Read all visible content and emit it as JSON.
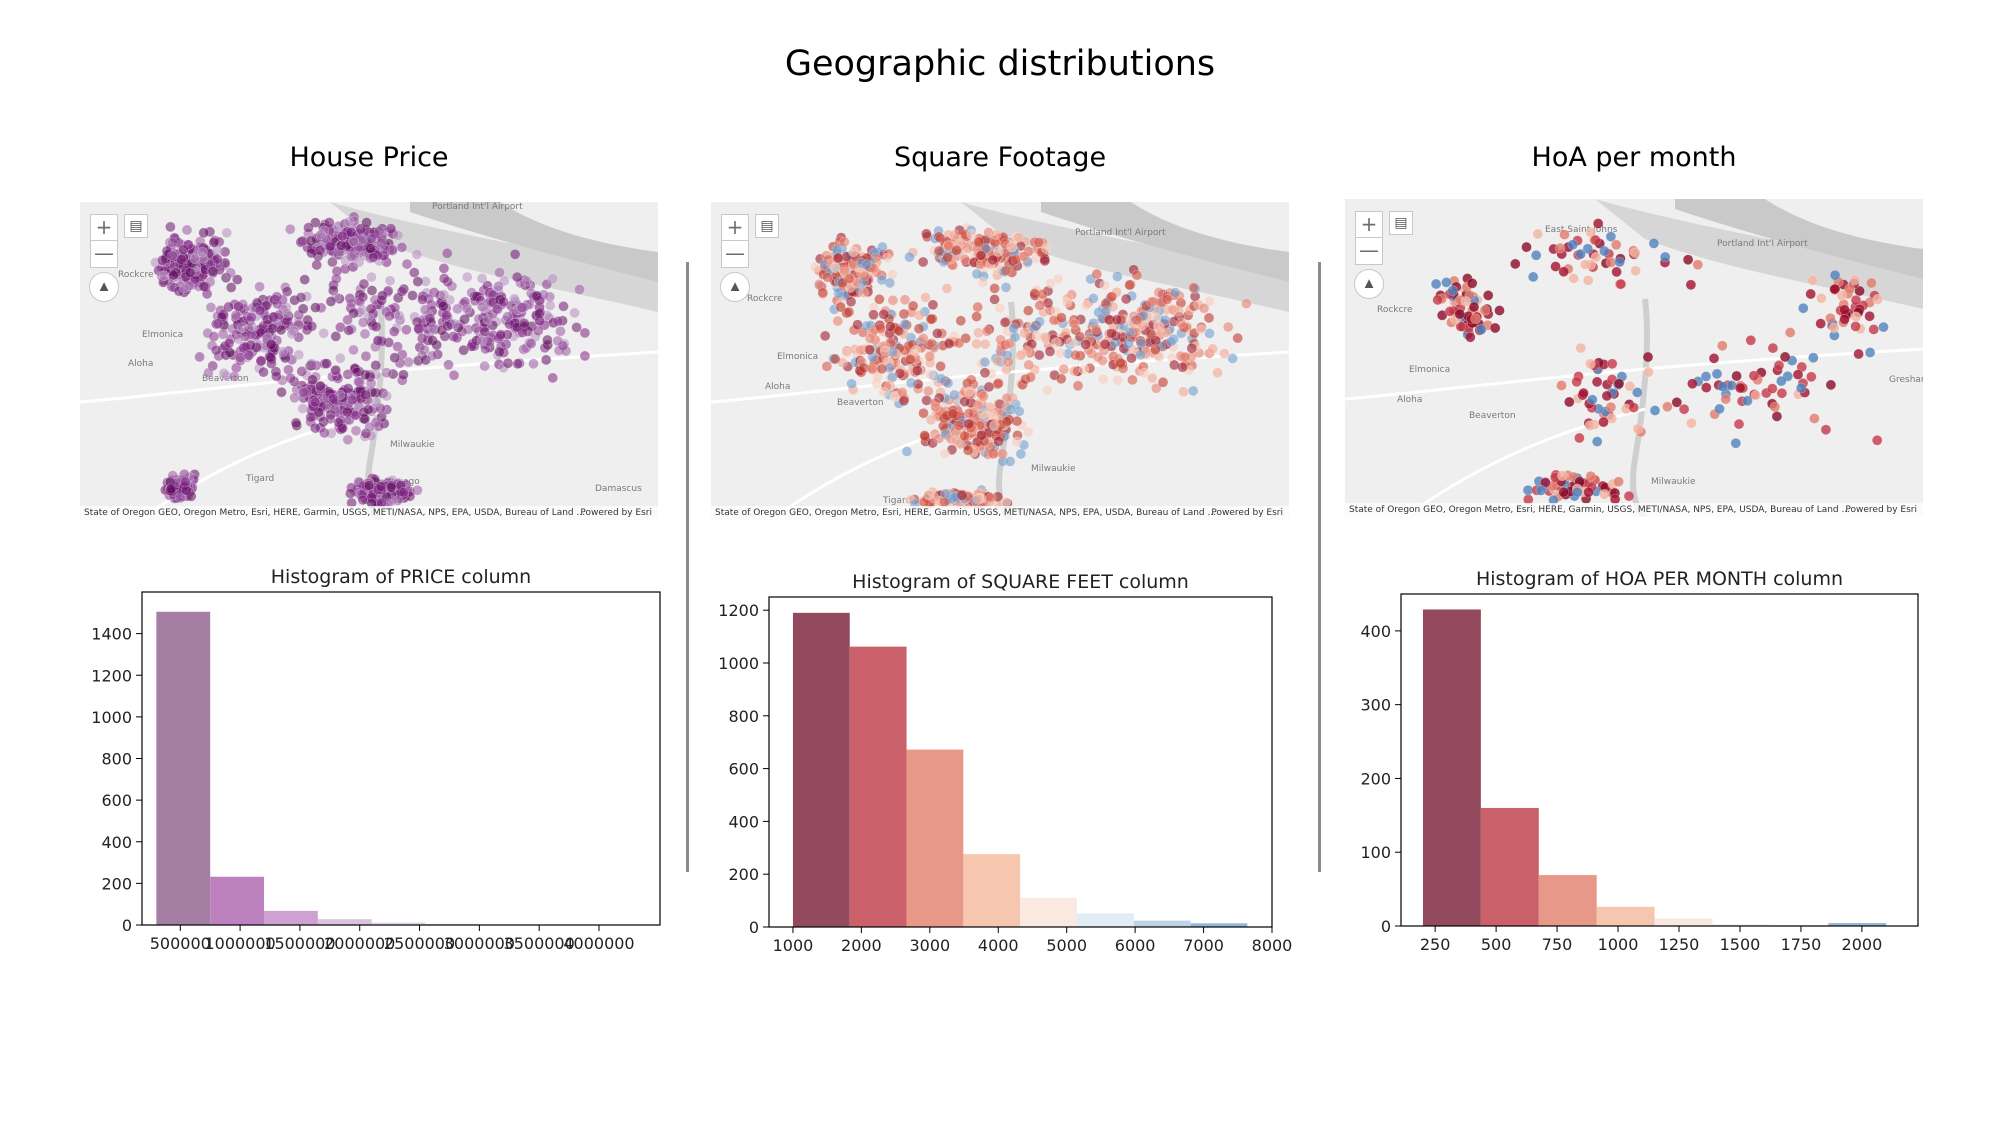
{
  "title": "Geographic distributions",
  "columns": [
    {
      "heading": "House Price",
      "map": {
        "places": [
          "Portland Int'l Airport",
          "Elmonica",
          "Aloha",
          "Beaverton",
          "Tigard",
          "Lake Oswego",
          "Milwaukie",
          "Damascus",
          "Rockcre"
        ],
        "attribution": "State of Oregon GEO, Oregon Metro, Esri, HERE, Garmin, USGS, METI/NASA, NPS, EPA, USDA, Bureau of Land ...",
        "powered": "Powered by Esri",
        "zoom_in": "+",
        "zoom_out": "—",
        "colors": [
          "#5c0a5c",
          "#6e1470",
          "#7b2080",
          "#8a3490",
          "#9a5aa4",
          "#b48cc0"
        ]
      }
    },
    {
      "heading": "Square Footage",
      "map": {
        "places": [
          "Portland Int'l Airport",
          "Elmonica",
          "Aloha",
          "Beaverton",
          "Tigard",
          "Milwaukie",
          "Rockcre"
        ],
        "attribution": "State of Oregon GEO, Oregon Metro, Esri, HERE, Garmin, USGS, METI/NASA, NPS, EPA, USDA, Bureau of Land ...",
        "powered": "Powered by Esri",
        "zoom_in": "+",
        "zoom_out": "—",
        "colors": [
          "#c0392b",
          "#d9584a",
          "#e8806f",
          "#f1a792",
          "#f7cbbb",
          "#6f9fcf",
          "#9e1c2e"
        ]
      }
    },
    {
      "heading": "HoA per month",
      "map": {
        "places": [
          "East Saint Johns",
          "Portland Int'l Airport",
          "Elmonica",
          "Aloha",
          "Beaverton",
          "Milwaukie",
          "Gresham",
          "Rockcre"
        ],
        "attribution": "State of Oregon GEO, Oregon Metro, Esri, HERE, Garmin, USGS, METI/NASA, NPS, EPA, USDA, Bureau of Land ...",
        "powered": "Powered by Esri",
        "zoom_in": "+",
        "zoom_out": "—",
        "colors": [
          "#8b0a25",
          "#a3122f",
          "#c43848",
          "#e07a6a",
          "#f3b4a0",
          "#4f82bd"
        ]
      }
    }
  ],
  "chart_data": [
    {
      "type": "bar",
      "title": "Histogram of PRICE column",
      "xlabel": "",
      "ylabel": "",
      "bin_edges": [
        300000,
        750000,
        1200000,
        1650000,
        2100000,
        2550000,
        3000000,
        3450000,
        3900000,
        4350000
      ],
      "values": [
        1505,
        232,
        68,
        28,
        12,
        6,
        3,
        1,
        1
      ],
      "xlim": [
        180000,
        4510000
      ],
      "ylim": [
        0,
        1600
      ],
      "xticks": [
        500000,
        1000000,
        1500000,
        2000000,
        2500000,
        3000000,
        3500000,
        4000000
      ],
      "xtick_labels": [
        "500000",
        "1000000",
        "1500000",
        "2000000",
        "2500000",
        "3000000",
        "3500000",
        "4000000"
      ],
      "yticks": [
        0,
        200,
        400,
        600,
        800,
        1000,
        1200,
        1400
      ],
      "colors": [
        "#a57ea4",
        "#bd82bd",
        "#cda2d3",
        "#dbc2e2",
        "#e4d6ea",
        "#ebe3f0",
        "#efeaf3",
        "#f2eef5",
        "#f4f1f7"
      ]
    },
    {
      "type": "bar",
      "title": "Histogram of SQUARE FEET column",
      "xlabel": "",
      "ylabel": "",
      "bin_edges": [
        1000,
        1830,
        2660,
        3490,
        4320,
        5150,
        5980,
        6810,
        7640
      ],
      "values": [
        1190,
        1062,
        672,
        276,
        110,
        52,
        24,
        14
      ],
      "xlim": [
        650,
        8000
      ],
      "ylim": [
        0,
        1250
      ],
      "xticks": [
        1000,
        2000,
        3000,
        4000,
        5000,
        6000,
        7000,
        8000
      ],
      "xtick_labels": [
        "1000",
        "2000",
        "3000",
        "4000",
        "5000",
        "6000",
        "7000",
        "8000"
      ],
      "yticks": [
        0,
        200,
        400,
        600,
        800,
        1000,
        1200
      ],
      "colors": [
        "#944a5e",
        "#ca616a",
        "#e79888",
        "#f6c6ae",
        "#f9e9e0",
        "#e2ecf4",
        "#bdd4e8",
        "#93b7d8"
      ]
    },
    {
      "type": "bar",
      "title": "Histogram of HOA PER MONTH column",
      "xlabel": "",
      "ylabel": "",
      "bin_edges": [
        200,
        437.5,
        675,
        912.5,
        1150,
        1387.5,
        1625,
        1862.5,
        2100
      ],
      "values": [
        429,
        160,
        69,
        26,
        10,
        2,
        1,
        4
      ],
      "xlim": [
        110,
        2230
      ],
      "ylim": [
        0,
        450
      ],
      "xticks": [
        250,
        500,
        750,
        1000,
        1250,
        1500,
        1750,
        2000
      ],
      "xtick_labels": [
        "250",
        "500",
        "750",
        "1000",
        "1250",
        "1500",
        "1750",
        "2000"
      ],
      "yticks": [
        0,
        100,
        200,
        300,
        400
      ],
      "colors": [
        "#944a5e",
        "#ca616a",
        "#e79888",
        "#f6c6ae",
        "#f9e9e0",
        "#e2ecf4",
        "#bdd4e8",
        "#93b7d8"
      ]
    }
  ]
}
